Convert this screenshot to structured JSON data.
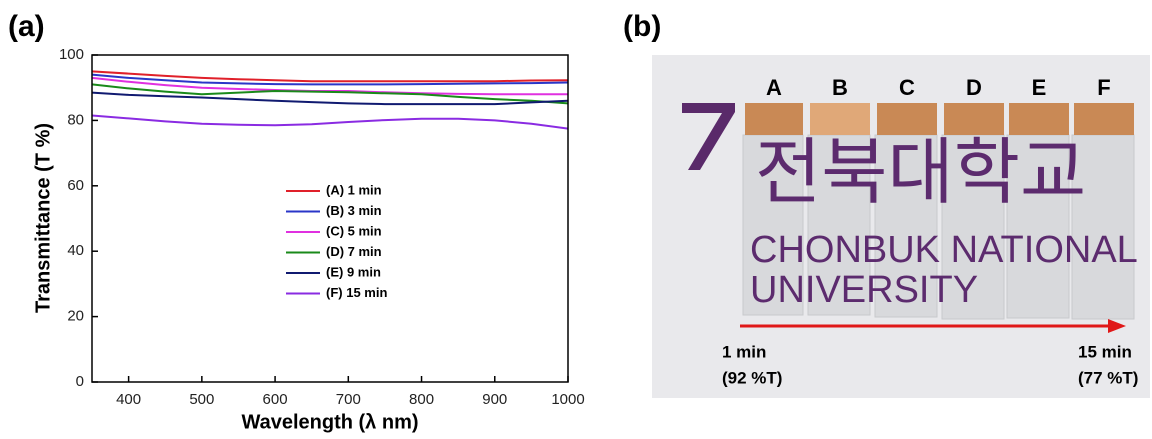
{
  "chart_data": {
    "type": "line",
    "panel_label": "(a)",
    "x_label": "Wavelength (λ nm)",
    "y_label": "Transmittance (T %)",
    "x": [
      350,
      400,
      450,
      500,
      550,
      600,
      650,
      700,
      750,
      800,
      850,
      900,
      950,
      1000
    ],
    "series": [
      {
        "name": "(A) 1 min",
        "color": "#e0202a",
        "values": [
          95,
          94.3,
          93.6,
          93,
          92.6,
          92.3,
          92,
          92,
          92,
          92,
          92,
          92,
          92.2,
          92.3
        ]
      },
      {
        "name": "(B) 3 min",
        "color": "#2a36c8",
        "values": [
          94,
          93,
          92.3,
          91.6,
          91.3,
          91.1,
          91,
          91,
          91,
          91.1,
          91.2,
          91.3,
          91.4,
          91.6
        ]
      },
      {
        "name": "(C) 5 min",
        "color": "#e030e0",
        "values": [
          93,
          91.8,
          90.8,
          90,
          89.6,
          89.3,
          89,
          89,
          88.6,
          88.3,
          88.1,
          88,
          88,
          88
        ]
      },
      {
        "name": "(D) 7 min",
        "color": "#1a8a1a",
        "values": [
          91,
          89.8,
          88.8,
          88,
          88.5,
          89,
          88.8,
          88.6,
          88.3,
          88,
          87.2,
          86.5,
          86,
          85.2
        ]
      },
      {
        "name": "(E) 9 min",
        "color": "#101a70",
        "values": [
          88.5,
          87.8,
          87.4,
          87,
          86.5,
          86,
          85.6,
          85.2,
          85,
          85,
          85,
          85,
          85.5,
          86
        ]
      },
      {
        "name": "(F) 15 min",
        "color": "#8a2be2",
        "values": [
          81.5,
          80.6,
          79.7,
          79,
          78.7,
          78.5,
          78.8,
          79.5,
          80.1,
          80.5,
          80.5,
          80,
          79,
          77.5
        ]
      }
    ],
    "xlim": [
      350,
      1000
    ],
    "xticks": [
      400,
      500,
      600,
      700,
      800,
      900,
      1000
    ],
    "ylim": [
      0,
      100
    ],
    "yticks": [
      0,
      20,
      40,
      60,
      80,
      100
    ],
    "grid": false
  },
  "photo": {
    "panel_label": "(b)",
    "strip_labels": [
      "A",
      "B",
      "C",
      "D",
      "E",
      "F"
    ],
    "logo_text": "전북대학교",
    "name_lines": [
      "CHONBUK NATIONAL",
      "UNIVERSITY"
    ],
    "start": {
      "time": "1 min",
      "transmittance": "(92 %T)"
    },
    "end": {
      "time": "15 min",
      "transmittance": "(77 %T)"
    }
  }
}
